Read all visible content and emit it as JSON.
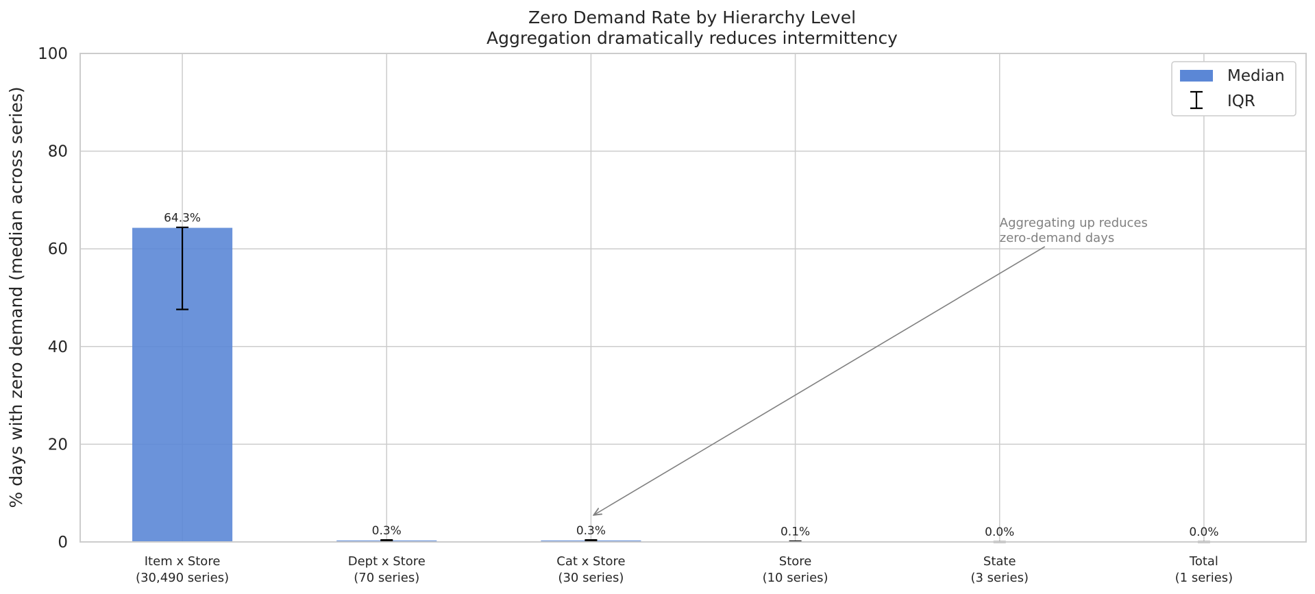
{
  "chart_data": {
    "type": "bar",
    "title": "Zero Demand Rate by Hierarchy Level",
    "subtitle": "Aggregation dramatically reduces intermittency",
    "xlabel": "",
    "ylabel": "% days with zero demand (median across series)",
    "ylim": [
      0,
      100
    ],
    "yticks": [
      "0",
      "20",
      "40",
      "60",
      "80",
      "100"
    ],
    "categories": [
      [
        "Item x Store",
        "(30,490 series)"
      ],
      [
        "Dept x Store",
        "(70 series)"
      ],
      [
        "Cat x Store",
        "(30 series)"
      ],
      [
        "Store",
        "(10 series)"
      ],
      [
        "State",
        "(3 series)"
      ],
      [
        "Total",
        "(1 series)"
      ]
    ],
    "series": [
      {
        "name": "Median",
        "values": [
          64.3,
          0.3,
          0.3,
          0.1,
          0.0,
          0.0
        ],
        "labels": [
          "64.3%",
          "0.3%",
          "0.3%",
          "0.1%",
          "0.0%",
          "0.0%"
        ],
        "color": "#5b87d6"
      }
    ],
    "iqr": [
      [
        47.6,
        64.4
      ],
      [
        0.2,
        0.4
      ],
      [
        0.2,
        0.4
      ],
      [
        0.05,
        0.15
      ],
      [
        0.0,
        0.0
      ],
      [
        0.0,
        0.0
      ]
    ],
    "legend": {
      "placement": "top-right",
      "entries": [
        "Median",
        "IQR"
      ]
    },
    "annotation": {
      "lines": [
        "Aggregating up reduces",
        "zero-demand days"
      ],
      "target_category": 2,
      "target_value": 5.5,
      "text_category": 4,
      "text_value": 62
    },
    "grid": true
  }
}
